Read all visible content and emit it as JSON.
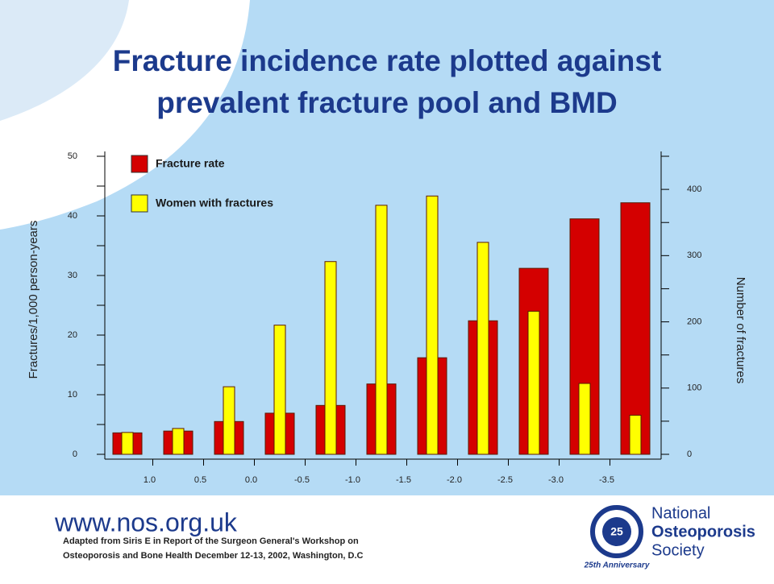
{
  "chart_data": {
    "type": "bar",
    "title": [
      "Fracture incidence rate plotted against",
      "prevalent fracture pool and BMD"
    ],
    "categories": [
      null,
      null,
      null,
      null,
      null,
      null,
      null,
      null,
      null,
      null,
      null
    ],
    "xtick_labels": [
      "1.0",
      "0.5",
      "0.0",
      "-0.5",
      "-1.0",
      "-1.5",
      "-2.0",
      "-2.5",
      "-3.0",
      "-3.5"
    ],
    "ylabel": "Fractures/1,000 person-years",
    "y2label": "Number of fractures",
    "ylim": [
      0,
      50
    ],
    "yticks": [
      0,
      10,
      20,
      30,
      40,
      50
    ],
    "yminorticks": [
      5,
      15,
      25,
      35,
      45
    ],
    "y2lim": [
      0,
      450
    ],
    "y2ticks": [
      0,
      100,
      200,
      300,
      400
    ],
    "y2minorticks": [
      50,
      150,
      250,
      350,
      450
    ],
    "grid": false,
    "series": [
      {
        "name": "Fracture rate",
        "color": "#d40000",
        "values": [
          3.6,
          3.9,
          5.5,
          6.9,
          8.2,
          11.8,
          16.2,
          22.4,
          31.2,
          39.5,
          42.2
        ]
      },
      {
        "name": "Women with fractures",
        "color": "#ffff00",
        "axis": "y2",
        "values": [
          33,
          39,
          102,
          195,
          291,
          376,
          390,
          320,
          216,
          107,
          59
        ]
      }
    ]
  },
  "footer": {
    "url": "www.nos.org.uk",
    "citation": [
      "Adapted from Siris E in Report of the Surgeon General's Workshop on",
      "Osteoporosis and Bone Health  December 12-13, 2002, Washington, D.C"
    ],
    "logo": {
      "badge": "25",
      "lines": [
        "National",
        "Osteoporosis",
        "Society"
      ],
      "ring": "25th Anniversary"
    }
  }
}
